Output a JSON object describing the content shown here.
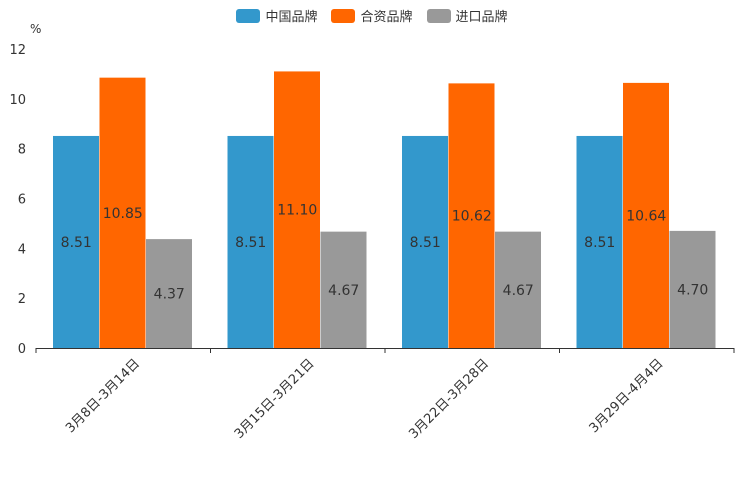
{
  "chart_data": {
    "type": "bar",
    "title": "",
    "unit_label": "%",
    "xlabel": "",
    "ylabel": "",
    "ylim": [
      0,
      12
    ],
    "yticks": [
      0,
      2,
      4,
      6,
      8,
      10,
      12
    ],
    "grid": false,
    "legend_position": "top-center",
    "categories": [
      "3月8日-3月14日",
      "3月15日-3月21日",
      "3月22日-3月28日",
      "3月29日-4月4日"
    ],
    "series": [
      {
        "name": "中国品牌",
        "color": "#3398cc",
        "values": [
          8.51,
          8.51,
          8.51,
          8.51
        ],
        "labels": [
          "8.51",
          "8.51",
          "8.51",
          "8.51"
        ]
      },
      {
        "name": "合资品牌",
        "color": "#ff6600",
        "values": [
          10.85,
          11.1,
          10.62,
          10.64
        ],
        "labels": [
          "10.85",
          "11.10",
          "10.62",
          "10.64"
        ]
      },
      {
        "name": "进口品牌",
        "color": "#999999",
        "values": [
          4.37,
          4.67,
          4.67,
          4.7
        ],
        "labels": [
          "4.37",
          "4.67",
          "4.67",
          "4.70"
        ]
      }
    ]
  }
}
